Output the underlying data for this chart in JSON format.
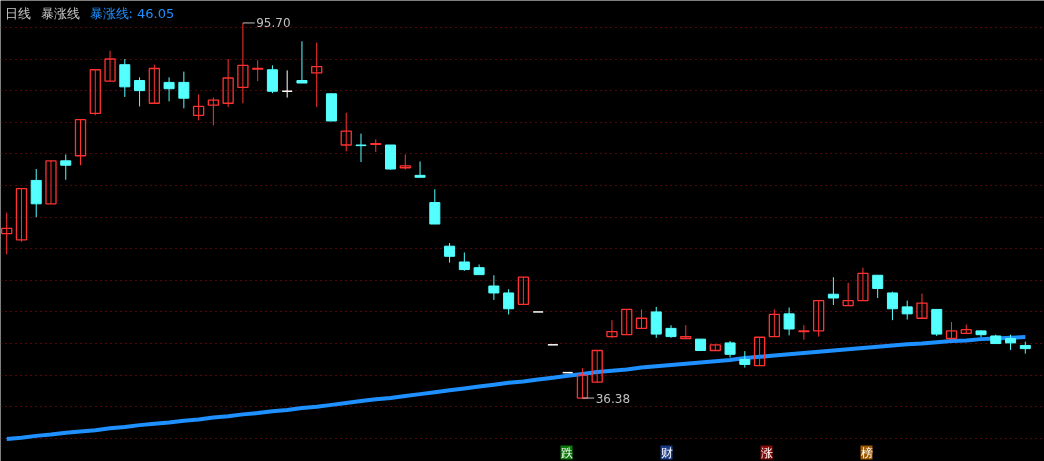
{
  "chart_data": {
    "type": "candlestick",
    "title": "日线",
    "subtitle": "暴涨线",
    "categories": [
      null,
      null,
      null,
      null,
      null,
      null,
      null,
      null,
      null,
      null,
      null,
      null,
      null,
      null,
      null,
      null,
      null,
      null,
      null,
      null,
      null,
      null,
      null,
      null,
      null,
      null,
      null,
      null,
      null,
      null,
      null,
      null,
      null,
      null,
      null,
      null,
      null,
      null,
      null,
      null,
      null,
      null,
      null,
      null,
      null,
      null,
      null,
      null,
      null,
      null,
      null,
      null,
      null,
      null,
      null,
      null,
      null,
      null,
      null,
      null,
      null,
      null,
      null,
      null,
      null,
      null,
      null,
      null,
      null,
      null
    ],
    "ohlc": [
      [
        62.4,
        65.7,
        59.1,
        63.2
      ],
      [
        61.4,
        69.5,
        61.1,
        69.5
      ],
      [
        70.8,
        72.6,
        65.0,
        67.1
      ],
      [
        67.1,
        73.9,
        67.1,
        73.9
      ],
      [
        73.9,
        74.9,
        70.9,
        73.2
      ],
      [
        74.7,
        80.4,
        73.2,
        80.4
      ],
      [
        81.4,
        88.3,
        81.1,
        88.3
      ],
      [
        86.5,
        91.3,
        86.5,
        90.0
      ],
      [
        89.1,
        90.0,
        84.0,
        85.6
      ],
      [
        86.6,
        87.1,
        82.5,
        85.0
      ],
      [
        83.0,
        89.1,
        83.0,
        88.5
      ],
      [
        86.3,
        87.1,
        83.3,
        85.3
      ],
      [
        86.3,
        88.0,
        82.2,
        83.8
      ],
      [
        81.1,
        84.4,
        80.3,
        82.5
      ],
      [
        82.7,
        83.9,
        79.5,
        83.5
      ],
      [
        83.0,
        90.0,
        82.4,
        87.0
      ],
      [
        85.5,
        95.7,
        83.0,
        89.0
      ],
      [
        88.4,
        89.8,
        86.5,
        88.5
      ],
      [
        88.3,
        89.0,
        84.6,
        84.9
      ],
      [
        84.9,
        88.2,
        83.9,
        84.9
      ],
      [
        86.6,
        92.8,
        86.2,
        86.2
      ],
      [
        87.8,
        92.6,
        82.4,
        88.8
      ],
      [
        84.5,
        84.5,
        80.2,
        80.2
      ],
      [
        76.4,
        81.5,
        75.4,
        78.6
      ],
      [
        76.4,
        78.2,
        73.7,
        76.3
      ],
      [
        76.5,
        77.3,
        75.3,
        76.6
      ],
      [
        76.4,
        76.4,
        72.5,
        72.6
      ],
      [
        72.8,
        74.9,
        72.5,
        73.1
      ],
      [
        71.6,
        73.8,
        71.3,
        71.3
      ],
      [
        67.3,
        69.4,
        63.9,
        63.9
      ],
      [
        60.4,
        60.9,
        57.8,
        58.8
      ],
      [
        57.9,
        59.4,
        56.5,
        56.7
      ],
      [
        57.0,
        57.5,
        55.9,
        55.9
      ],
      [
        54.1,
        55.8,
        51.9,
        53.0
      ],
      [
        53.0,
        53.6,
        49.6,
        50.5
      ],
      [
        51.2,
        55.5,
        51.2,
        55.5
      ],
      [
        50.0,
        50.0,
        50.0,
        50.0
      ],
      [
        44.8,
        44.8,
        44.8,
        44.8
      ],
      [
        40.4,
        40.4,
        40.4,
        40.4
      ],
      [
        36.38,
        41.1,
        36.38,
        40.0
      ],
      [
        38.9,
        43.9,
        38.8,
        43.9
      ],
      [
        46.1,
        48.7,
        45.9,
        46.9
      ],
      [
        46.4,
        50.4,
        46.4,
        50.4
      ],
      [
        47.4,
        50.4,
        47.4,
        49.0
      ],
      [
        50.0,
        50.8,
        45.9,
        46.5
      ],
      [
        47.4,
        47.9,
        45.9,
        46.1
      ],
      [
        45.8,
        47.9,
        45.8,
        46.1
      ],
      [
        45.7,
        45.7,
        43.8,
        43.9
      ],
      [
        43.9,
        44.8,
        43.9,
        44.8
      ],
      [
        45.1,
        45.4,
        42.8,
        43.3
      ],
      [
        42.5,
        43.8,
        41.2,
        41.7
      ],
      [
        41.5,
        46.0,
        41.5,
        46.0
      ],
      [
        46.1,
        50.4,
        46.1,
        49.6
      ],
      [
        49.7,
        50.7,
        46.3,
        47.3
      ],
      [
        46.9,
        47.9,
        45.6,
        47.0
      ],
      [
        47.0,
        51.8,
        46.1,
        51.8
      ],
      [
        52.8,
        55.5,
        51.1,
        52.2
      ],
      [
        51.0,
        54.6,
        51.0,
        51.8
      ],
      [
        51.8,
        57.0,
        51.8,
        56.1
      ],
      [
        55.8,
        55.8,
        52.2,
        53.7
      ],
      [
        53.0,
        53.2,
        48.7,
        50.5
      ],
      [
        50.8,
        51.8,
        48.8,
        49.7
      ],
      [
        49.0,
        52.9,
        49.0,
        51.4
      ],
      [
        50.4,
        50.4,
        46.2,
        46.5
      ],
      [
        45.8,
        48.4,
        45.8,
        47.0
      ],
      [
        46.6,
        48.0,
        46.6,
        47.2
      ],
      [
        47.0,
        47.1,
        46.0,
        46.4
      ],
      [
        46.2,
        46.4,
        45.0,
        45.0
      ],
      [
        45.8,
        46.4,
        44.0,
        45.1
      ],
      [
        44.7,
        45.3,
        43.4,
        44.2
      ]
    ],
    "series": [
      {
        "name": "暴涨线:",
        "type": "line",
        "color": "#1e90ff",
        "values": [
          29.9,
          30.1,
          30.4,
          30.6,
          30.9,
          31.1,
          31.3,
          31.6,
          31.8,
          32.1,
          32.3,
          32.5,
          32.8,
          33.0,
          33.3,
          33.5,
          33.8,
          34.0,
          34.3,
          34.5,
          34.8,
          35.0,
          35.3,
          35.6,
          35.9,
          36.2,
          36.4,
          36.7,
          37.0,
          37.3,
          37.6,
          37.9,
          38.2,
          38.5,
          38.8,
          39.0,
          39.3,
          39.6,
          39.9,
          40.2,
          40.5,
          40.7,
          40.9,
          41.2,
          41.4,
          41.6,
          41.8,
          42.0,
          42.2,
          42.4,
          42.7,
          42.9,
          43.1,
          43.3,
          43.5,
          43.7,
          43.9,
          44.1,
          44.3,
          44.5,
          44.7,
          44.9,
          45.0,
          45.2,
          45.4,
          45.5,
          45.7,
          45.8,
          45.9,
          46.05
        ],
        "value_labels": [
          null,
          null,
          null,
          null,
          null,
          null,
          null,
          null,
          null,
          null,
          null,
          null,
          null,
          null,
          null,
          null,
          null,
          null,
          null,
          null,
          null,
          null,
          null,
          null,
          null,
          null,
          null,
          null,
          null,
          null,
          null,
          null,
          null,
          null,
          null,
          null,
          null,
          null,
          null,
          null,
          null,
          null,
          null,
          null,
          null,
          null,
          null,
          null,
          null,
          null,
          null,
          null,
          null,
          null,
          null,
          null,
          null,
          null,
          null,
          null,
          null,
          null,
          null,
          null,
          null,
          null,
          null,
          null,
          null,
          "46.05"
        ]
      }
    ],
    "annotations": [
      "95.70",
      "36.38",
      "跌",
      "财",
      "涨",
      "榜"
    ],
    "yticks": [
      {
        "value": 30,
        "label": null
      },
      {
        "value": 35,
        "label": null
      },
      {
        "value": 40,
        "label": null
      },
      {
        "value": 45,
        "label": null
      },
      {
        "value": 50,
        "label": null
      },
      {
        "value": 55,
        "label": null
      },
      {
        "value": 60,
        "label": null
      },
      {
        "value": 65,
        "label": null
      },
      {
        "value": 70,
        "label": null
      },
      {
        "value": 75,
        "label": null
      },
      {
        "value": 80,
        "label": null
      },
      {
        "value": 85,
        "label": null
      },
      {
        "value": 90,
        "label": null
      },
      {
        "value": 95,
        "label": null
      }
    ],
    "grid": "y",
    "tick_labels": false
  }
}
